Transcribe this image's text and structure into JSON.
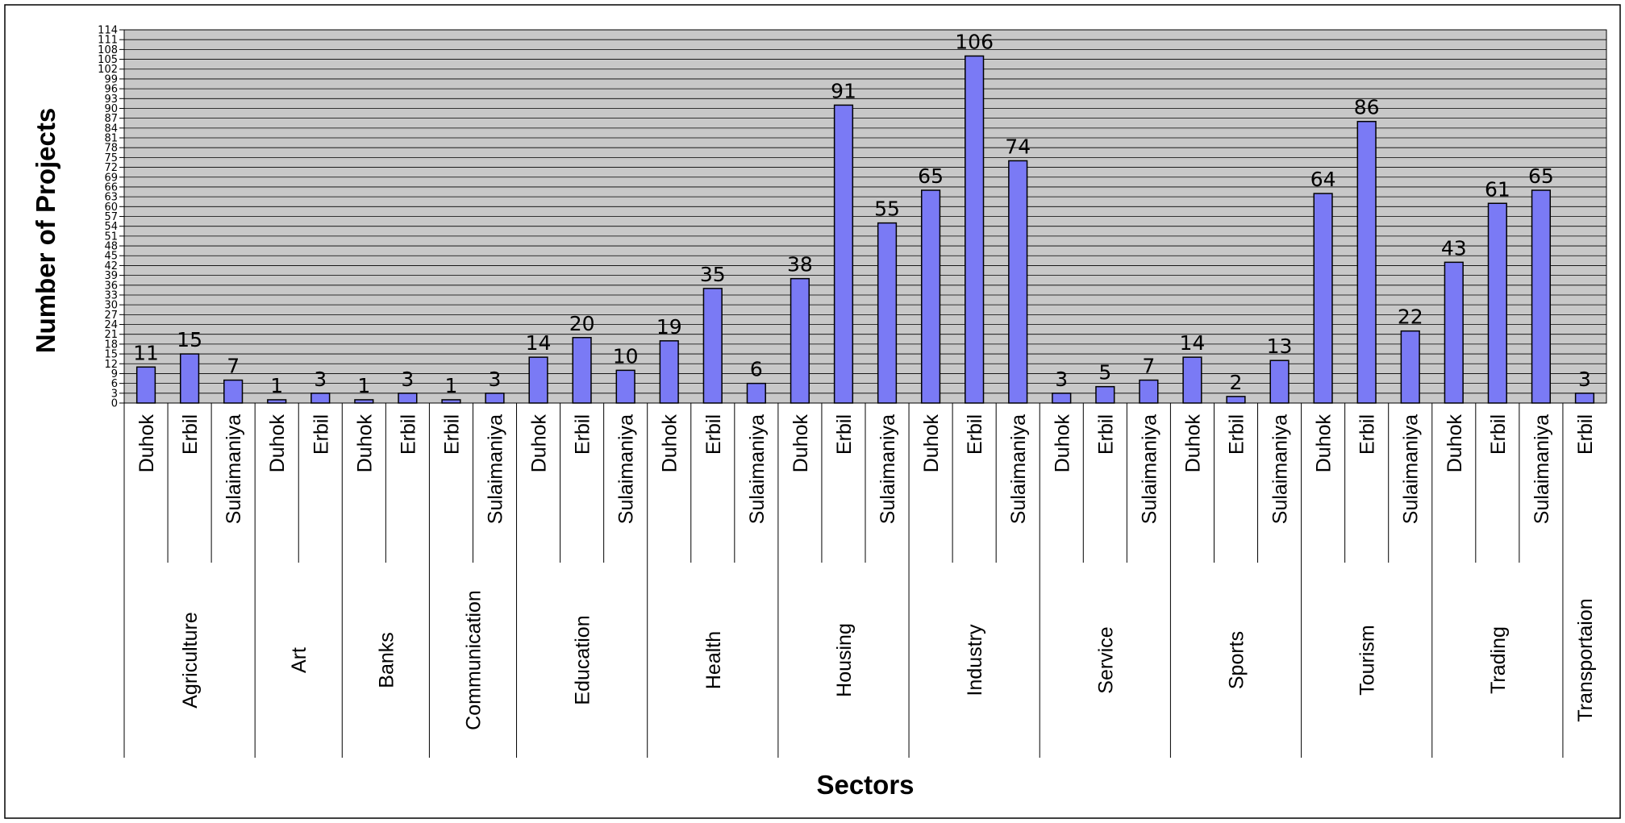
{
  "chart_data": {
    "type": "bar",
    "xlabel": "Sectors",
    "ylabel": "Number of Projects",
    "ylim": [
      0,
      114
    ],
    "ytick_step": 3,
    "grid": true,
    "legend": "none",
    "bar_color": "#7a7af5",
    "plot_background": "#c8c8c8",
    "groups": [
      {
        "name": "Agriculture",
        "bars": [
          {
            "label": "Duhok",
            "value": 11
          },
          {
            "label": "Erbil",
            "value": 15
          },
          {
            "label": "Sulaimaniya",
            "value": 7
          }
        ]
      },
      {
        "name": "Art",
        "bars": [
          {
            "label": "Duhok",
            "value": 1
          },
          {
            "label": "Erbil",
            "value": 3
          }
        ]
      },
      {
        "name": "Banks",
        "bars": [
          {
            "label": "Duhok",
            "value": 1
          },
          {
            "label": "Erbil",
            "value": 3
          }
        ]
      },
      {
        "name": "Communication",
        "bars": [
          {
            "label": "Erbil",
            "value": 1
          },
          {
            "label": "Sulaimaniya",
            "value": 3
          }
        ]
      },
      {
        "name": "Education",
        "bars": [
          {
            "label": "Duhok",
            "value": 14
          },
          {
            "label": "Erbil",
            "value": 20
          },
          {
            "label": "Sulaimaniya",
            "value": 10
          }
        ]
      },
      {
        "name": "Health",
        "bars": [
          {
            "label": "Duhok",
            "value": 19
          },
          {
            "label": "Erbil",
            "value": 35
          },
          {
            "label": "Sulaimaniya",
            "value": 6
          }
        ]
      },
      {
        "name": "Housing",
        "bars": [
          {
            "label": "Duhok",
            "value": 38
          },
          {
            "label": "Erbil",
            "value": 91
          },
          {
            "label": "Sulaimaniya",
            "value": 55
          }
        ]
      },
      {
        "name": "Industry",
        "bars": [
          {
            "label": "Duhok",
            "value": 65
          },
          {
            "label": "Erbil",
            "value": 106
          },
          {
            "label": "Sulaimaniya",
            "value": 74
          }
        ]
      },
      {
        "name": "Service",
        "bars": [
          {
            "label": "Duhok",
            "value": 3
          },
          {
            "label": "Erbil",
            "value": 5
          },
          {
            "label": "Sulaimaniya",
            "value": 7
          }
        ]
      },
      {
        "name": "Sports",
        "bars": [
          {
            "label": "Duhok",
            "value": 14
          },
          {
            "label": "Erbil",
            "value": 2
          },
          {
            "label": "Sulaimaniya",
            "value": 13
          }
        ]
      },
      {
        "name": "Tourism",
        "bars": [
          {
            "label": "Duhok",
            "value": 64
          },
          {
            "label": "Erbil",
            "value": 86
          },
          {
            "label": "Sulaimaniya",
            "value": 22
          }
        ]
      },
      {
        "name": "Trading",
        "bars": [
          {
            "label": "Duhok",
            "value": 43
          },
          {
            "label": "Erbil",
            "value": 61
          },
          {
            "label": "Sulaimaniya",
            "value": 65
          }
        ]
      },
      {
        "name": "Transportaion",
        "bars": [
          {
            "label": "Erbil",
            "value": 3
          }
        ]
      }
    ]
  }
}
